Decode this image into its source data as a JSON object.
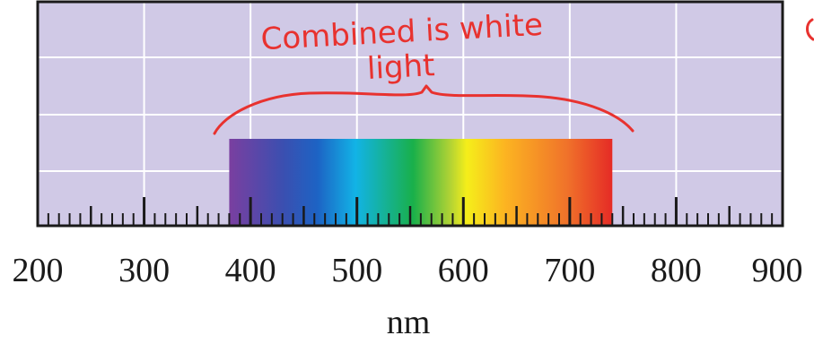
{
  "colors": {
    "plot_background": "#d0c9e6",
    "grid": "#ffffff",
    "frame": "#1a1a1a",
    "annotation": "#e8322f"
  },
  "axis": {
    "unit": "nm",
    "min": 200,
    "max": 900,
    "major_step": 100,
    "minor_step": 10,
    "tick_labels": [
      "200",
      "300",
      "400",
      "500",
      "600",
      "700",
      "800",
      "900"
    ]
  },
  "spectrum": {
    "start_nm": 380,
    "end_nm": 740
  },
  "annotation": {
    "line1": "Combined is white",
    "line2": "light"
  }
}
